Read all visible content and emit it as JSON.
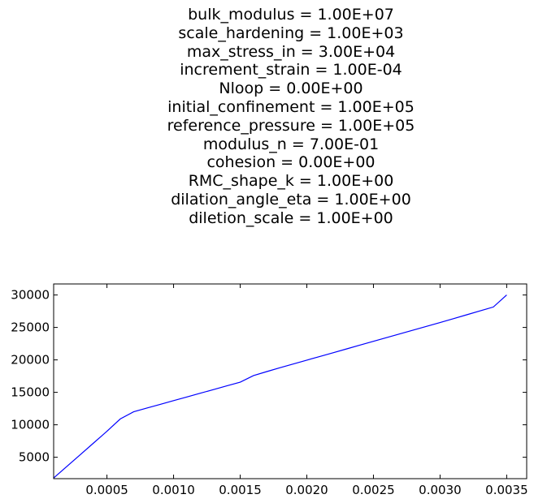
{
  "chart_data": {
    "type": "line",
    "title_lines": [
      "bulk_modulus = 1.00E+07",
      "scale_hardening = 1.00E+03",
      "max_stress_in = 3.00E+04",
      "increment_strain = 1.00E-04",
      "Nloop = 0.00E+00",
      "initial_confinement = 1.00E+05",
      "reference_pressure = 1.00E+05",
      "modulus_n = 7.00E-01",
      "cohesion = 0.00E+00",
      "RMC_shape_k = 1.00E+00",
      "dilation_angle_eta = 1.00E+00",
      "diletion_scale = 1.00E+00"
    ],
    "xlabel": "",
    "ylabel": "",
    "xlim": [
      0.0001,
      0.00365
    ],
    "ylim": [
      1700,
      31700
    ],
    "x_ticks": [
      0.0005,
      0.001,
      0.0015,
      0.002,
      0.0025,
      0.003,
      0.0035
    ],
    "x_tick_labels": [
      "0.0005",
      "0.0010",
      "0.0015",
      "0.0020",
      "0.0025",
      "0.0030",
      "0.0035"
    ],
    "y_ticks": [
      5000,
      10000,
      15000,
      20000,
      25000,
      30000
    ],
    "y_tick_labels": [
      "5000",
      "10000",
      "15000",
      "20000",
      "25000",
      "30000"
    ],
    "grid": false,
    "series": [
      {
        "color": "#0000ff",
        "x": [
          0.0001,
          0.0002,
          0.0003,
          0.0004,
          0.0005,
          0.0006,
          0.0007,
          0.0008,
          0.0009,
          0.001,
          0.0011,
          0.0012,
          0.0013,
          0.0014,
          0.0015,
          0.0016,
          0.0017,
          0.0018,
          0.0019,
          0.002,
          0.0021,
          0.0022,
          0.0023,
          0.0024,
          0.0025,
          0.0026,
          0.0027,
          0.0028,
          0.0029,
          0.003,
          0.0031,
          0.0032,
          0.0033,
          0.0034,
          0.0035
        ],
        "y": [
          1800,
          3600,
          5400,
          7200,
          9000,
          10900,
          12000,
          12580,
          13150,
          13720,
          14290,
          14860,
          15430,
          16000,
          16570,
          17580,
          18200,
          18800,
          19380,
          19960,
          20540,
          21120,
          21700,
          22280,
          22860,
          23440,
          24020,
          24600,
          25180,
          25760,
          26350,
          26950,
          27550,
          28150,
          30000
        ]
      }
    ]
  }
}
